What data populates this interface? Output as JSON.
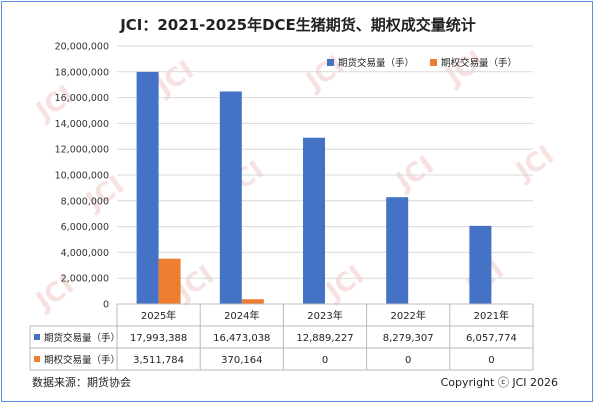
{
  "title": "JCI：2021-2025年DCE生猪期货、期权成交量统计",
  "source": "数据来源：期货协会",
  "copyright": "Copyright ⓒ JCI 2026",
  "watermark": "JCI",
  "chart_data": {
    "type": "bar",
    "categories": [
      "2025年",
      "2024年",
      "2023年",
      "2022年",
      "2021年"
    ],
    "ylim": [
      0,
      20000000
    ],
    "yticks": [
      0,
      2000000,
      4000000,
      6000000,
      8000000,
      10000000,
      12000000,
      14000000,
      16000000,
      18000000,
      20000000
    ],
    "ytick_labels": [
      "0",
      "2,000,000",
      "4,000,000",
      "6,000,000",
      "8,000,000",
      "10,000,000",
      "12,000,000",
      "14,000,000",
      "16,000,000",
      "18,000,000",
      "20,000,000"
    ],
    "legend_position": "top-right",
    "series": [
      {
        "name": "期货交易量（手）",
        "color": "#4472c4",
        "values": [
          17993388,
          16473038,
          12889227,
          8279307,
          6057774
        ],
        "labels": [
          "17,993,388",
          "16,473,038",
          "12,889,227",
          "8,279,307",
          "6,057,774"
        ]
      },
      {
        "name": "期权交易量（手）",
        "color": "#ed7d31",
        "values": [
          3511784,
          370164,
          0,
          0,
          0
        ],
        "labels": [
          "3,511,784",
          "370,164",
          "0",
          "0",
          "0"
        ]
      }
    ]
  }
}
